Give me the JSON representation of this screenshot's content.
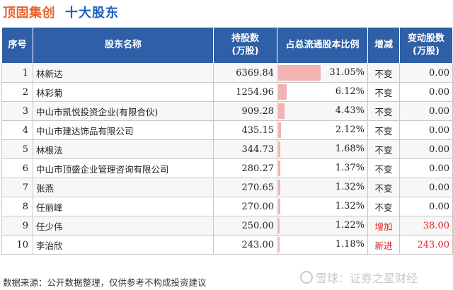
{
  "header": {
    "company": "顶固集创",
    "subtitle": "十大股东"
  },
  "table": {
    "columns": {
      "rank": "序号",
      "name": "股东名称",
      "shares_l1": "持股数",
      "shares_l2": "(万股)",
      "ratio": "占总流通股本比例",
      "change_type": "增减",
      "change_l1": "变动股数",
      "change_l2": "(万股)"
    }
  },
  "chart_data": {
    "type": "table",
    "title": "十大股东",
    "columns": [
      "序号",
      "股东名称",
      "持股数(万股)",
      "占总流通股本比例",
      "增减",
      "变动股数(万股)"
    ],
    "rows": [
      {
        "rank": "1",
        "name": "林新达",
        "shares": "6369.84",
        "ratio": "31.05%",
        "ratio_value": 31.05,
        "change_type": "不变",
        "change": "0.00"
      },
      {
        "rank": "2",
        "name": "林彩菊",
        "shares": "1254.96",
        "ratio": "6.12%",
        "ratio_value": 6.12,
        "change_type": "不变",
        "change": "0.00"
      },
      {
        "rank": "3",
        "name": "中山市凯悦投资企业(有限合伙)",
        "shares": "909.28",
        "ratio": "4.43%",
        "ratio_value": 4.43,
        "change_type": "不变",
        "change": "0.00"
      },
      {
        "rank": "4",
        "name": "中山市建达饰品有限公司",
        "shares": "435.15",
        "ratio": "2.12%",
        "ratio_value": 2.12,
        "change_type": "不变",
        "change": "0.00"
      },
      {
        "rank": "5",
        "name": "林根法",
        "shares": "344.73",
        "ratio": "1.68%",
        "ratio_value": 1.68,
        "change_type": "不变",
        "change": "0.00"
      },
      {
        "rank": "6",
        "name": "中山市顶盛企业管理咨询有限公司",
        "shares": "280.27",
        "ratio": "1.37%",
        "ratio_value": 1.37,
        "change_type": "不变",
        "change": "0.00"
      },
      {
        "rank": "7",
        "name": "张燕",
        "shares": "270.65",
        "ratio": "1.32%",
        "ratio_value": 1.32,
        "change_type": "不变",
        "change": "0.00"
      },
      {
        "rank": "8",
        "name": "任丽峰",
        "shares": "270.00",
        "ratio": "1.32%",
        "ratio_value": 1.32,
        "change_type": "不变",
        "change": "0.00"
      },
      {
        "rank": "9",
        "name": "任少伟",
        "shares": "250.00",
        "ratio": "1.22%",
        "ratio_value": 1.22,
        "change_type": "增加",
        "change": "38.00"
      },
      {
        "rank": "10",
        "name": "李治欣",
        "shares": "243.00",
        "ratio": "1.18%",
        "ratio_value": 1.18,
        "change_type": "新进",
        "change": "243.00"
      }
    ],
    "bar_color": "#f4b3b3",
    "highlight_color": "#e02020"
  },
  "footer": {
    "source": "数据来源：公开数据整理，仅供参考不构成投资建议"
  },
  "watermark": {
    "text": "雪球：证券之星财经"
  }
}
